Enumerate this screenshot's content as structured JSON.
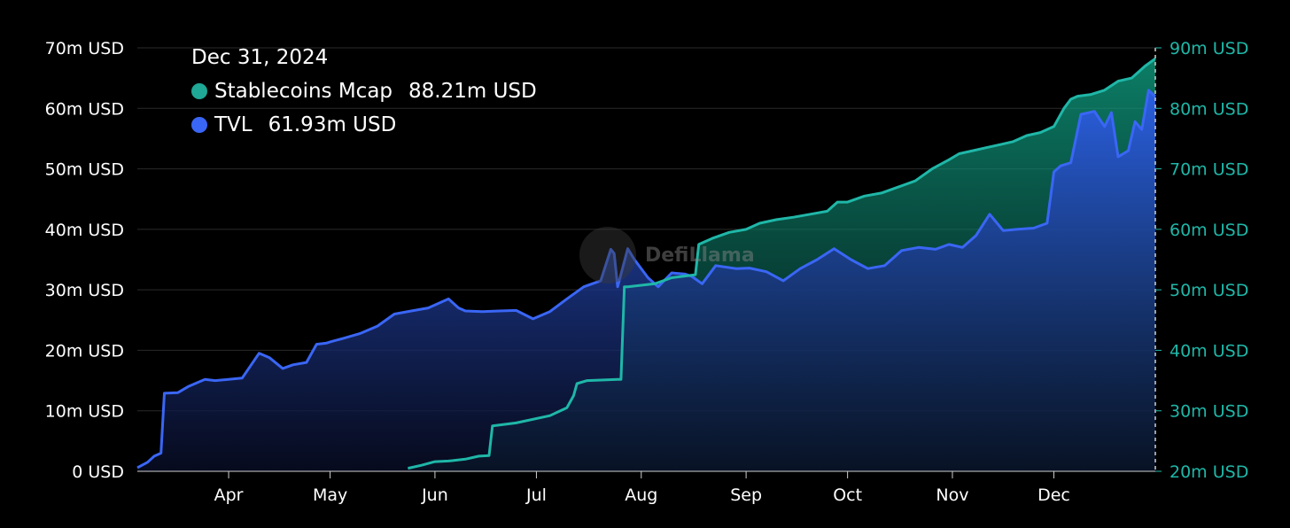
{
  "tooltip": {
    "date": "Dec 31, 2024",
    "items": [
      {
        "name": "Stablecoins Mcap",
        "value": "88.21m USD",
        "color": "#1fa896"
      },
      {
        "name": "TVL",
        "value": "61.93m USD",
        "color": "#3a66f5"
      }
    ]
  },
  "watermark": "DefiLlama",
  "chart_data": {
    "type": "area",
    "grid": "horizontal",
    "legend": "top-left",
    "x_axis": {
      "range": [
        "2024-03-05",
        "2024-12-31"
      ],
      "tick_labels": [
        "Apr",
        "May",
        "Jun",
        "Jul",
        "Aug",
        "Sep",
        "Oct",
        "Nov",
        "Dec"
      ],
      "tick_dates": [
        "2024-04-01",
        "2024-05-01",
        "2024-06-01",
        "2024-07-01",
        "2024-08-01",
        "2024-09-01",
        "2024-10-01",
        "2024-11-01",
        "2024-12-01"
      ]
    },
    "y_left": {
      "range": [
        0,
        70
      ],
      "unit": "m USD",
      "tick_labels": [
        "0 USD",
        "10m USD",
        "20m USD",
        "30m USD",
        "40m USD",
        "50m USD",
        "60m USD",
        "70m USD"
      ]
    },
    "y_right": {
      "range": [
        20,
        90
      ],
      "unit": "m USD",
      "tick_labels": [
        "20m USD",
        "30m USD",
        "40m USD",
        "50m USD",
        "60m USD",
        "70m USD",
        "80m USD",
        "90m USD"
      ]
    },
    "series": [
      {
        "name": "TVL",
        "axis": "left",
        "color": "#3a66f5",
        "x": [
          "2024-03-05",
          "2024-03-08",
          "2024-03-10",
          "2024-03-12",
          "2024-03-13",
          "2024-03-17",
          "2024-03-20",
          "2024-03-25",
          "2024-03-28",
          "2024-04-05",
          "2024-04-10",
          "2024-04-13",
          "2024-04-17",
          "2024-04-20",
          "2024-04-24",
          "2024-04-27",
          "2024-04-30",
          "2024-05-01",
          "2024-05-05",
          "2024-05-10",
          "2024-05-15",
          "2024-05-20",
          "2024-05-25",
          "2024-05-30",
          "2024-06-05",
          "2024-06-08",
          "2024-06-10",
          "2024-06-15",
          "2024-06-20",
          "2024-06-25",
          "2024-06-30",
          "2024-07-05",
          "2024-07-10",
          "2024-07-15",
          "2024-07-20",
          "2024-07-23",
          "2024-07-24",
          "2024-07-25",
          "2024-07-28",
          "2024-07-30",
          "2024-08-03",
          "2024-08-06",
          "2024-08-10",
          "2024-08-14",
          "2024-08-16",
          "2024-08-19",
          "2024-08-23",
          "2024-08-29",
          "2024-09-02",
          "2024-09-07",
          "2024-09-12",
          "2024-09-17",
          "2024-09-22",
          "2024-09-27",
          "2024-10-02",
          "2024-10-07",
          "2024-10-12",
          "2024-10-17",
          "2024-10-22",
          "2024-10-27",
          "2024-10-31",
          "2024-11-04",
          "2024-11-08",
          "2024-11-12",
          "2024-11-16",
          "2024-11-20",
          "2024-11-25",
          "2024-11-29",
          "2024-12-01",
          "2024-12-03",
          "2024-12-06",
          "2024-12-09",
          "2024-12-13",
          "2024-12-16",
          "2024-12-18",
          "2024-12-20",
          "2024-12-23",
          "2024-12-25",
          "2024-12-27",
          "2024-12-29",
          "2024-12-31"
        ],
        "values": [
          0.6,
          1.5,
          2.5,
          3.0,
          12.9,
          13.0,
          14.0,
          15.2,
          15.0,
          15.4,
          19.5,
          18.8,
          17.0,
          17.6,
          18.0,
          21.0,
          21.2,
          21.4,
          22.0,
          22.8,
          24.0,
          26.0,
          26.5,
          27.0,
          28.5,
          27.0,
          26.5,
          26.4,
          26.5,
          26.6,
          25.2,
          26.4,
          28.5,
          30.5,
          31.5,
          36.7,
          36.0,
          30.5,
          36.8,
          35.0,
          32.0,
          30.5,
          32.8,
          32.6,
          32.2,
          31.0,
          34.0,
          33.5,
          33.6,
          33.0,
          31.5,
          33.5,
          35.0,
          36.8,
          35.0,
          33.5,
          34.0,
          36.5,
          37.0,
          36.7,
          37.5,
          37.0,
          39.0,
          42.5,
          39.8,
          40.0,
          40.2,
          41.0,
          49.5,
          50.5,
          51.0,
          59.0,
          59.5,
          57.0,
          59.3,
          52.0,
          53.0,
          57.8,
          56.5,
          63.0,
          61.93
        ]
      },
      {
        "name": "Stablecoins Mcap",
        "axis": "right",
        "color": "#1fb7a8",
        "x": [
          "2024-05-24",
          "2024-05-28",
          "2024-06-01",
          "2024-06-05",
          "2024-06-10",
          "2024-06-14",
          "2024-06-17",
          "2024-06-18",
          "2024-06-25",
          "2024-07-05",
          "2024-07-10",
          "2024-07-12",
          "2024-07-13",
          "2024-07-16",
          "2024-07-25",
          "2024-07-26",
          "2024-07-27",
          "2024-07-28",
          "2024-08-05",
          "2024-08-10",
          "2024-08-17",
          "2024-08-18",
          "2024-08-22",
          "2024-08-27",
          "2024-09-01",
          "2024-09-05",
          "2024-09-10",
          "2024-09-15",
          "2024-09-20",
          "2024-09-25",
          "2024-09-28",
          "2024-10-01",
          "2024-10-06",
          "2024-10-11",
          "2024-10-16",
          "2024-10-21",
          "2024-10-26",
          "2024-10-31",
          "2024-11-03",
          "2024-11-07",
          "2024-11-11",
          "2024-11-15",
          "2024-11-19",
          "2024-11-23",
          "2024-11-27",
          "2024-12-01",
          "2024-12-04",
          "2024-12-06",
          "2024-12-08",
          "2024-12-12",
          "2024-12-16",
          "2024-12-20",
          "2024-12-24",
          "2024-12-28",
          "2024-12-31"
        ],
        "values": [
          20.5,
          21.0,
          21.6,
          21.7,
          22.0,
          22.5,
          22.6,
          27.5,
          28.0,
          29.2,
          30.5,
          32.5,
          34.5,
          35.0,
          35.2,
          35.2,
          50.5,
          50.5,
          51.0,
          52.0,
          52.5,
          57.5,
          58.5,
          59.5,
          60.0,
          61.0,
          61.6,
          62.0,
          62.5,
          63.0,
          64.5,
          64.5,
          65.5,
          66.0,
          67.0,
          68.0,
          70.0,
          71.5,
          72.5,
          73.0,
          73.5,
          74.0,
          74.5,
          75.5,
          76.0,
          77.0,
          80.0,
          81.5,
          82.0,
          82.3,
          83.0,
          84.5,
          85.0,
          87.0,
          88.21
        ]
      }
    ]
  }
}
